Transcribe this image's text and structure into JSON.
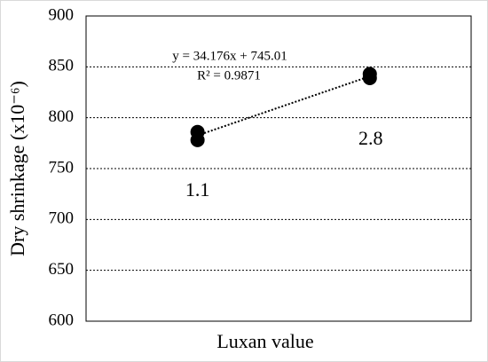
{
  "chart_data": {
    "type": "scatter",
    "x_title": "Luxan value",
    "y_title": "Dry shrinkage  (x10⁻⁶)",
    "series": [
      {
        "name": "Dry shrinkage",
        "color": "#000000",
        "x": [
          1.1,
          1.1,
          2.8,
          2.8
        ],
        "values": [
          786,
          778,
          843,
          839
        ]
      }
    ],
    "point_labels": [
      "1.1",
      "2.8"
    ],
    "trendline": {
      "slope": 34.176,
      "intercept": 745.01,
      "equation": "y = 34.176x + 745.01",
      "r2_label": "R² = 0.9871"
    },
    "xlim": [
      0,
      3.8
    ],
    "ylim": [
      600,
      900
    ],
    "yticks": [
      600,
      650,
      700,
      750,
      800,
      850,
      900
    ],
    "grid": true
  }
}
